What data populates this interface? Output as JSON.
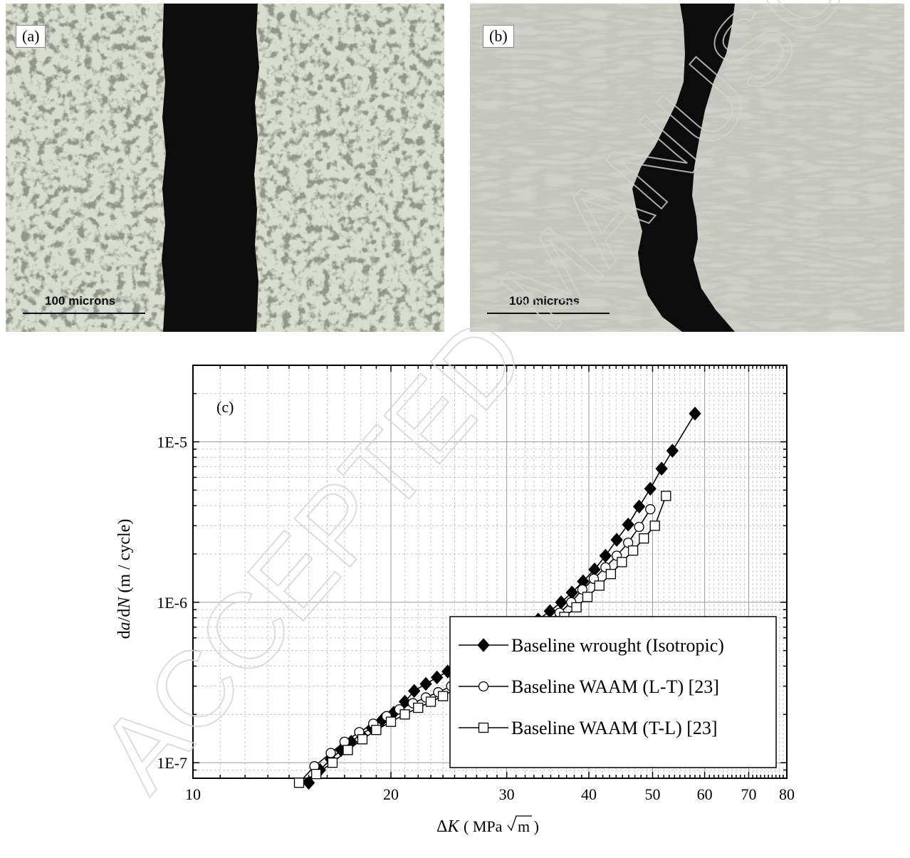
{
  "panels": {
    "a": {
      "label": "(a)",
      "scale_label": "100 microns"
    },
    "b": {
      "label": "(b)",
      "scale_label": "100 microns"
    }
  },
  "watermark": "ACCEPTED MANUSCRIPT",
  "chart_data": {
    "type": "line",
    "panel_label": "(c)",
    "xlabel_prefix": "ΔK",
    "xlabel_unit_a": "MPa",
    "xlabel_unit_b": "m",
    "ylabel_prefix": "da/dN",
    "ylabel_unit": "(m / cycle)",
    "x_scale": "log",
    "y_scale": "log",
    "xlim": [
      10,
      80
    ],
    "ylim": [
      8e-08,
      3e-05
    ],
    "x_ticks": [
      10,
      20,
      30,
      40,
      50,
      60,
      70,
      80
    ],
    "x_tick_labels": [
      "10",
      "20",
      "30",
      "40",
      "50",
      "60",
      "70",
      "80"
    ],
    "y_ticks": [
      1e-07,
      1e-06,
      1e-05
    ],
    "y_tick_labels": [
      "1E-7",
      "1E-6",
      "1E-5"
    ],
    "grid": true,
    "legend_position": "bottom-right",
    "series": [
      {
        "name": "Baseline wrought (Isotropic)",
        "marker": "filled-diamond",
        "x": [
          15.0,
          15.6,
          16.2,
          16.8,
          17.4,
          18.0,
          18.7,
          19.4,
          20.2,
          21.0,
          21.7,
          22.6,
          23.5,
          24.4,
          25.4,
          26.4,
          27.5,
          28.6,
          29.8,
          31.0,
          32.2,
          33.5,
          34.9,
          36.3,
          37.7,
          39.2,
          40.8,
          42.4,
          44.1,
          45.9,
          47.7,
          49.6,
          51.6,
          53.6,
          58.0
        ],
        "y": [
          7.5e-08,
          9e-08,
          1.05e-07,
          1.2e-07,
          1.35e-07,
          1.5e-07,
          1.65e-07,
          1.85e-07,
          2.05e-07,
          2.4e-07,
          2.8e-07,
          3.1e-07,
          3.4e-07,
          3.7e-07,
          4e-07,
          4.3e-07,
          4.7e-07,
          5.2e-07,
          5.7e-07,
          6.3e-07,
          7e-07,
          7.8e-07,
          8.8e-07,
          1e-06,
          1.15e-06,
          1.35e-06,
          1.6e-06,
          1.95e-06,
          2.45e-06,
          3.05e-06,
          3.95e-06,
          5.1e-06,
          6.8e-06,
          8.8e-06,
          1.5e-05
        ]
      },
      {
        "name": "Baseline WAAM (L-T) [23]",
        "marker": "open-circle",
        "x": [
          14.5,
          15.3,
          16.2,
          17.0,
          17.9,
          18.8,
          19.7,
          20.6,
          21.6,
          22.6,
          23.6,
          24.7,
          25.8,
          26.9,
          28.1,
          29.3,
          30.6,
          31.9,
          33.2,
          34.6,
          36.1,
          37.6,
          39.1,
          40.7,
          42.4,
          44.1,
          45.9,
          47.7,
          49.6
        ],
        "y": [
          7.5e-08,
          9.5e-08,
          1.15e-07,
          1.35e-07,
          1.55e-07,
          1.75e-07,
          1.95e-07,
          2.15e-07,
          2.35e-07,
          2.55e-07,
          2.75e-07,
          3e-07,
          3.3e-07,
          3.7e-07,
          4.1e-07,
          4.6e-07,
          5.2e-07,
          5.9e-07,
          6.6e-07,
          7.5e-07,
          8.6e-07,
          1e-06,
          1.2e-06,
          1.4e-06,
          1.65e-06,
          1.95e-06,
          2.35e-06,
          2.95e-06,
          3.8e-06
        ]
      },
      {
        "name": "Baseline WAAM (T-L) [23]",
        "marker": "open-square",
        "x": [
          14.5,
          15.4,
          16.3,
          17.2,
          18.1,
          19.0,
          20.0,
          21.0,
          22.0,
          23.0,
          24.0,
          25.1,
          26.2,
          27.4,
          28.6,
          29.8,
          31.1,
          32.4,
          33.8,
          35.2,
          36.7,
          38.3,
          39.8,
          41.5,
          43.2,
          44.9,
          46.7,
          48.5,
          50.4,
          52.4
        ],
        "y": [
          7.5e-08,
          8.5e-08,
          1e-07,
          1.2e-07,
          1.4e-07,
          1.6e-07,
          1.8e-07,
          2e-07,
          2.2e-07,
          2.4e-07,
          2.6e-07,
          2.9e-07,
          3.2e-07,
          3.6e-07,
          4e-07,
          4.5e-07,
          5e-07,
          5.6e-07,
          6.3e-07,
          7.1e-07,
          8.1e-07,
          9.3e-07,
          1.08e-06,
          1.27e-06,
          1.5e-06,
          1.78e-06,
          2.1e-06,
          2.5e-06,
          3e-06,
          4.6e-06
        ]
      }
    ]
  }
}
